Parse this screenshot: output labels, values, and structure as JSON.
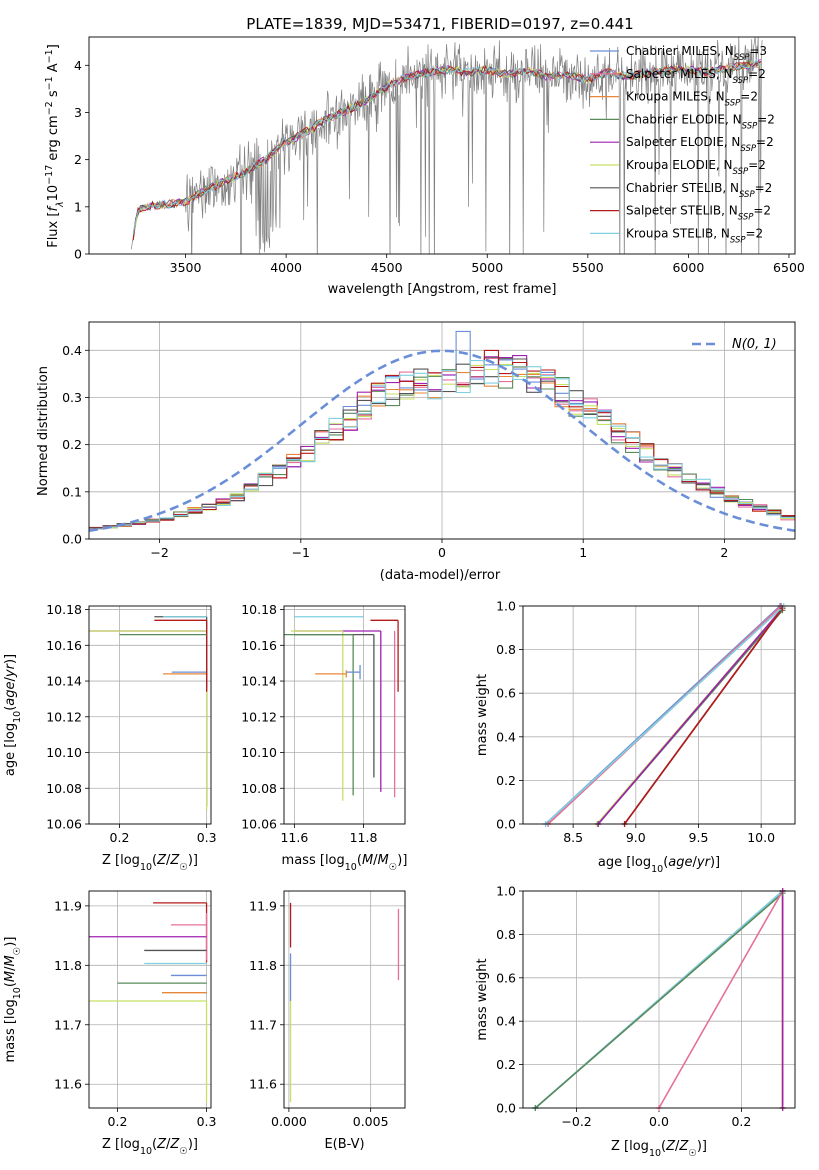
{
  "figure": {
    "title": "PLATE=1839, MJD=53471, FIBERID=0197, z=0.441"
  },
  "colors": {
    "Chabrier MILES": "#6a8fd8",
    "Salpeter MILES": "#e5709d",
    "Kroupa MILES": "#e8873a",
    "Chabrier ELODIE": "#5a8a5a",
    "Salpeter ELODIE": "#a020b0",
    "Kroupa ELODIE": "#c8e063",
    "Chabrier STELIB": "#555555",
    "Salpeter STELIB": "#b51a1a",
    "Kroupa STELIB": "#7fd0e0",
    "data": "#808080",
    "normal": "#6a8fd8"
  },
  "chart_data": [
    {
      "id": "spectrum",
      "type": "line",
      "xlabel": "wavelength [Angstrom, rest frame]",
      "ylabel": "Flux [f_λ 10^-17 erg cm^-2 s^-1 A^-1]",
      "xlim": [
        3020,
        6530
      ],
      "ylim": [
        0,
        4.6
      ],
      "xticks": [
        3500,
        4000,
        4500,
        5000,
        5500,
        6000,
        6500
      ],
      "yticks": [
        0,
        1,
        2,
        3,
        4
      ],
      "legend_location": "upper right",
      "legend": [
        {
          "label": "Chabrier MILES",
          "nssp": "3"
        },
        {
          "label": "Salpeter MILES",
          "nssp": "2"
        },
        {
          "label": "Kroupa MILES",
          "nssp": "2"
        },
        {
          "label": "Chabrier ELODIE",
          "nssp": "2"
        },
        {
          "label": "Salpeter ELODIE",
          "nssp": "2"
        },
        {
          "label": "Kroupa ELODIE",
          "nssp": "2"
        },
        {
          "label": "Chabrier STELIB",
          "nssp": "2"
        },
        {
          "label": "Salpeter STELIB",
          "nssp": "2"
        },
        {
          "label": "Kroupa STELIB",
          "nssp": "2"
        }
      ],
      "continuum": {
        "x": [
          3230,
          3260,
          3300,
          3400,
          3500,
          3600,
          3700,
          3800,
          3900,
          4000,
          4100,
          4200,
          4300,
          4400,
          4500,
          4600,
          4700,
          4800,
          4900,
          5000,
          5100,
          5200,
          5300,
          5400,
          5500,
          5600,
          5700,
          5800,
          5900,
          6000,
          6100,
          6200,
          6300,
          6370
        ],
        "y": [
          0.1,
          0.9,
          1.0,
          1.05,
          1.1,
          1.35,
          1.55,
          1.75,
          2.0,
          2.4,
          2.65,
          2.85,
          3.05,
          3.25,
          3.55,
          3.75,
          3.85,
          3.9,
          3.85,
          3.9,
          3.8,
          3.9,
          3.75,
          3.8,
          3.7,
          3.85,
          3.75,
          3.85,
          3.9,
          3.9,
          3.85,
          3.95,
          4.0,
          4.05
        ]
      }
    },
    {
      "id": "residuals",
      "type": "histogram",
      "xlabel": "(data-model)/error",
      "ylabel": "Normed distribution",
      "xlim": [
        -2.5,
        2.5
      ],
      "ylim": [
        0,
        0.46
      ],
      "xticks": [
        -2,
        -1,
        0,
        1,
        2
      ],
      "yticks": [
        0.0,
        0.1,
        0.2,
        0.3,
        0.4
      ],
      "grid": true,
      "legend_location": "upper right",
      "legend": [
        {
          "label": "N(0, 1)",
          "style": "dashed"
        }
      ],
      "bin_width": 0.1,
      "envelope": {
        "x": [
          -2.5,
          -2.0,
          -1.5,
          -1.0,
          -0.5,
          -0.2,
          0.0,
          0.3,
          0.6,
          1.0,
          1.5,
          2.0,
          2.5
        ],
        "y": [
          0.02,
          0.04,
          0.08,
          0.17,
          0.29,
          0.33,
          0.33,
          0.36,
          0.35,
          0.28,
          0.17,
          0.09,
          0.04
        ]
      },
      "peak": {
        "x": 0.15,
        "y": 0.44,
        "series": "Chabrier MILES"
      },
      "normal": {
        "mu": 0,
        "sigma": 1
      }
    },
    {
      "id": "age-vs-Z",
      "type": "errorbar",
      "xlabel": "Z [log10(Z/Z☉)]",
      "ylabel": "age [log10(age/yr)]",
      "xlim": [
        0.165,
        0.305
      ],
      "ylim": [
        10.06,
        10.182
      ],
      "xticks": [
        0.2,
        0.3
      ],
      "yticks": [
        10.06,
        10.08,
        10.1,
        10.12,
        10.14,
        10.16,
        10.18
      ],
      "grid": true,
      "points": [
        {
          "series": "Chabrier MILES",
          "x": 0.3,
          "xerr_lo": 0.04,
          "y": 10.145,
          "yerr_lo": 0.004,
          "yerr_hi": 0.004
        },
        {
          "series": "Kroupa MILES",
          "x": 0.3,
          "xerr_lo": 0.05,
          "y": 10.144,
          "yerr_lo": 0.002,
          "yerr_hi": 0.002
        },
        {
          "series": "Salpeter ELODIE",
          "x": 0.3,
          "xerr_lo": 0.135,
          "y": 10.168,
          "yerr_lo": 0.098,
          "yerr_hi": 0.0
        },
        {
          "series": "Kroupa ELODIE",
          "x": 0.3,
          "xerr_lo": 0.135,
          "y": 10.168,
          "yerr_lo": 0.1,
          "yerr_hi": 0.001
        },
        {
          "series": "Chabrier STELIB",
          "x": 0.3,
          "xerr_lo": 0.06,
          "y": 10.176,
          "yerr_lo": 0.04,
          "yerr_hi": 0.0
        },
        {
          "series": "Salpeter STELIB",
          "x": 0.3,
          "xerr_lo": 0.06,
          "y": 10.174,
          "yerr_lo": 0.04,
          "yerr_hi": 0.0
        },
        {
          "series": "Kroupa STELIB",
          "x": 0.3,
          "xerr_lo": 0.05,
          "y": 10.176,
          "yerr_lo": 0.0,
          "yerr_hi": 0.0
        },
        {
          "series": "Chabrier ELODIE",
          "x": 0.3,
          "xerr_lo": 0.1,
          "y": 10.166,
          "yerr_lo": 0.0,
          "yerr_hi": 0.0
        }
      ]
    },
    {
      "id": "age-vs-mass",
      "type": "errorbar",
      "xlabel": "mass [log10(M/M☉)]",
      "ylabel": "",
      "xlim": [
        11.57,
        11.92
      ],
      "ylim": [
        10.06,
        10.182
      ],
      "xticks": [
        11.6,
        11.8
      ],
      "yticks": [
        10.06,
        10.08,
        10.1,
        10.12,
        10.14,
        10.16,
        10.18
      ],
      "grid": true,
      "points": [
        {
          "series": "Salpeter STELIB",
          "x": 11.9,
          "xerr_lo": 0.08,
          "y": 10.174,
          "yerr_lo": 0.04,
          "yerr_hi": 0.0
        },
        {
          "series": "Salpeter MILES",
          "x": 11.89,
          "xerr_lo": 0.0,
          "y": 10.16,
          "yerr_lo": 0.085,
          "yerr_hi": 0.008
        },
        {
          "series": "Salpeter ELODIE",
          "x": 11.85,
          "xerr_lo": 0.25,
          "y": 10.168,
          "yerr_lo": 0.09,
          "yerr_hi": 0.0
        },
        {
          "series": "Kroupa ELODIE",
          "x": 11.74,
          "xerr_lo": 0.15,
          "y": 10.168,
          "yerr_lo": 0.095,
          "yerr_hi": 0.0
        },
        {
          "series": "Chabrier STELIB",
          "x": 11.83,
          "xerr_lo": 0.23,
          "y": 10.166,
          "yerr_lo": 0.08,
          "yerr_hi": 0.0
        },
        {
          "series": "Chabrier ELODIE",
          "x": 11.77,
          "xerr_lo": 0.2,
          "y": 10.166,
          "yerr_lo": 0.09,
          "yerr_hi": 0.0
        },
        {
          "series": "Kroupa STELIB",
          "x": 11.8,
          "xerr_lo": 0.2,
          "y": 10.176,
          "yerr_lo": 0.0,
          "yerr_hi": 0.0
        },
        {
          "series": "Chabrier MILES",
          "x": 11.79,
          "xerr_lo": 0.04,
          "y": 10.145,
          "yerr_lo": 0.004,
          "yerr_hi": 0.004
        },
        {
          "series": "Kroupa MILES",
          "x": 11.75,
          "xerr_lo": 0.09,
          "y": 10.144,
          "yerr_lo": 0.002,
          "yerr_hi": 0.002
        }
      ]
    },
    {
      "id": "weight-vs-age",
      "type": "line",
      "xlabel": "age [log10(age/yr)]",
      "ylabel": "mass weight",
      "xlim": [
        8.1,
        10.27
      ],
      "ylim": [
        0.0,
        1.0
      ],
      "xticks": [
        8.5,
        9.0,
        9.5,
        10.0
      ],
      "yticks": [
        0.0,
        0.2,
        0.4,
        0.6,
        0.8,
        1.0
      ],
      "grid": true,
      "series": [
        {
          "name": "Chabrier MILES",
          "x": [
            8.28,
            10.15
          ],
          "y": [
            0.0,
            1.0
          ]
        },
        {
          "name": "Kroupa MILES",
          "x": [
            8.3,
            10.16
          ],
          "y": [
            0.0,
            1.0
          ]
        },
        {
          "name": "Salpeter MILES",
          "x": [
            8.3,
            10.16
          ],
          "y": [
            0.0,
            1.0
          ]
        },
        {
          "name": "Kroupa ELODIE",
          "x": [
            8.69,
            10.17
          ],
          "y": [
            0.0,
            0.99
          ]
        },
        {
          "name": "Chabrier ELODIE",
          "x": [
            8.7,
            10.17
          ],
          "y": [
            0.0,
            0.98
          ]
        },
        {
          "name": "Salpeter ELODIE",
          "x": [
            8.7,
            10.17
          ],
          "y": [
            0.0,
            0.99
          ]
        },
        {
          "name": "Chabrier STELIB",
          "x": [
            8.91,
            10.17
          ],
          "y": [
            0.0,
            0.99
          ]
        },
        {
          "name": "Salpeter STELIB",
          "x": [
            8.91,
            10.17
          ],
          "y": [
            0.0,
            0.99
          ]
        },
        {
          "name": "Kroupa STELIB",
          "x": [
            8.28,
            10.18
          ],
          "y": [
            0.0,
            1.0
          ]
        }
      ]
    },
    {
      "id": "mass-vs-Z",
      "type": "errorbar",
      "xlabel": "Z [log10(Z/Z☉)]",
      "ylabel": "mass [log10(M/M☉)]",
      "xlim": [
        0.168,
        0.305
      ],
      "ylim": [
        11.56,
        11.925
      ],
      "xticks": [
        0.2,
        0.3
      ],
      "yticks": [
        11.6,
        11.7,
        11.8,
        11.9
      ],
      "grid": true,
      "points": [
        {
          "series": "Salpeter STELIB",
          "x": 0.3,
          "xerr_lo": 0.06,
          "y": 11.905,
          "yerr_lo": 0.1,
          "yerr_hi": 0.0
        },
        {
          "series": "Salpeter MILES",
          "x": 0.3,
          "xerr_lo": 0.04,
          "y": 11.868,
          "yerr_lo": 0.06,
          "yerr_hi": 0.02
        },
        {
          "series": "Salpeter ELODIE",
          "x": 0.3,
          "xerr_lo": 0.135,
          "y": 11.848,
          "yerr_lo": 0.0,
          "yerr_hi": 0.0
        },
        {
          "series": "Chabrier STELIB",
          "x": 0.3,
          "xerr_lo": 0.07,
          "y": 11.825,
          "yerr_lo": 0.0,
          "yerr_hi": 0.0
        },
        {
          "series": "Kroupa STELIB",
          "x": 0.3,
          "xerr_lo": 0.07,
          "y": 11.803,
          "yerr_lo": 0.0,
          "yerr_hi": 0.0
        },
        {
          "series": "Chabrier MILES",
          "x": 0.3,
          "xerr_lo": 0.04,
          "y": 11.783,
          "yerr_lo": 0.0,
          "yerr_hi": 0.0
        },
        {
          "series": "Chabrier ELODIE",
          "x": 0.3,
          "xerr_lo": 0.1,
          "y": 11.77,
          "yerr_lo": 0.0,
          "yerr_hi": 0.0
        },
        {
          "series": "Kroupa MILES",
          "x": 0.3,
          "xerr_lo": 0.05,
          "y": 11.754,
          "yerr_lo": 0.0,
          "yerr_hi": 0.0
        },
        {
          "series": "Kroupa ELODIE",
          "x": 0.3,
          "xerr_lo": 0.135,
          "y": 11.74,
          "yerr_lo": 0.17,
          "yerr_hi": 0.0
        }
      ]
    },
    {
      "id": "mass-vs-ebv",
      "type": "errorbar",
      "xlabel": "E(B-V)",
      "ylabel": "",
      "xlim": [
        -0.0003,
        0.0071
      ],
      "ylim": [
        11.56,
        11.925
      ],
      "xticks": [
        0.0,
        0.005
      ],
      "xticklabels": [
        "0.000",
        "0.005"
      ],
      "yticks": [
        11.6,
        11.7,
        11.8,
        11.9
      ],
      "grid": true,
      "points": [
        {
          "series": "Salpeter STELIB",
          "x": 0.0001,
          "y": 11.86,
          "yerr_lo": 0.03,
          "yerr_hi": 0.045
        },
        {
          "series": "Chabrier MILES",
          "x": 0.0001,
          "y": 11.78,
          "yerr_lo": 0.04,
          "yerr_hi": 0.04
        },
        {
          "series": "Kroupa ELODIE",
          "x": 0.0001,
          "y": 11.65,
          "yerr_lo": 0.08,
          "yerr_hi": 0.09
        },
        {
          "series": "Salpeter MILES",
          "x": 0.0067,
          "y": 11.835,
          "yerr_lo": 0.06,
          "yerr_hi": 0.06
        }
      ]
    },
    {
      "id": "weight-vs-Z",
      "type": "line",
      "xlabel": "Z [log10(Z/Z☉)]",
      "ylabel": "mass weight",
      "xlim": [
        -0.33,
        0.33
      ],
      "ylim": [
        0.0,
        1.0
      ],
      "xticks": [
        -0.2,
        0.0,
        0.2
      ],
      "yticks": [
        0.0,
        0.2,
        0.4,
        0.6,
        0.8,
        1.0
      ],
      "grid": true,
      "series": [
        {
          "name": "Chabrier MILES",
          "x": [
            -0.3,
            0.3
          ],
          "y": [
            0.0,
            1.0
          ]
        },
        {
          "name": "Kroupa STELIB",
          "x": [
            -0.3,
            0.3
          ],
          "y": [
            0.0,
            1.0
          ]
        },
        {
          "name": "Chabrier ELODIE",
          "x": [
            -0.3,
            0.3
          ],
          "y": [
            0.0,
            0.99
          ]
        },
        {
          "name": "Salpeter MILES",
          "x": [
            0.0,
            0.3
          ],
          "y": [
            0.0,
            1.0
          ]
        },
        {
          "name": "Kroupa ELODIE",
          "x": [
            0.3,
            0.3
          ],
          "y": [
            0.0,
            1.0
          ]
        },
        {
          "name": "Kroupa MILES",
          "x": [
            0.3,
            0.3
          ],
          "y": [
            0.0,
            1.0
          ]
        },
        {
          "name": "Salpeter ELODIE",
          "x": [
            0.3,
            0.3
          ],
          "y": [
            0.0,
            1.0
          ]
        }
      ]
    }
  ]
}
